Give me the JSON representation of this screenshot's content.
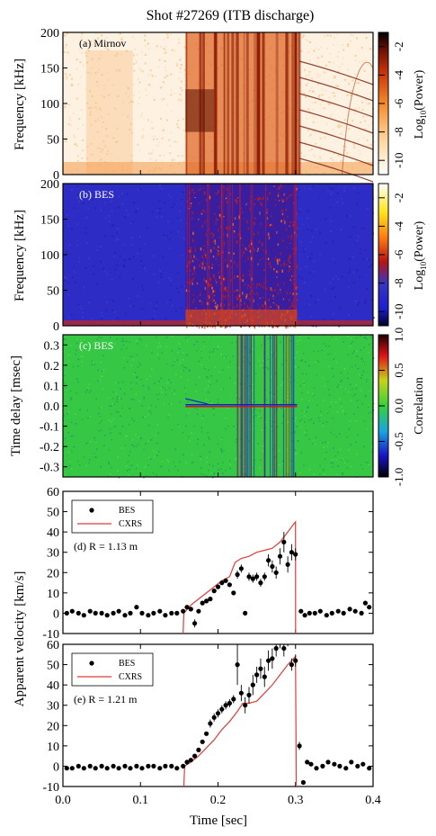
{
  "title": "Shot #27269 (ITB discharge)",
  "xaxis": {
    "label": "Time [sec]",
    "min": 0.0,
    "max": 0.4,
    "ticks": [
      "0.0",
      "0.1",
      "0.2",
      "0.3",
      "0.4"
    ]
  },
  "chart_data": [
    {
      "type": "heatmap",
      "panel_label": "(a) Mirnov",
      "ylabel": "Frequency [kHz]",
      "xlim": [
        0.0,
        0.4
      ],
      "ylim": [
        0,
        200
      ],
      "yticks": [
        "0",
        "50",
        "100",
        "150",
        "200"
      ],
      "colorbar": {
        "label_base": "Log",
        "label_sub": "10",
        "label_tail": "(Power)",
        "ticks": [
          "-10",
          "-8",
          "-6",
          "-4",
          "-2"
        ],
        "range": [
          -11,
          -1
        ],
        "colormap": "white-orange-red-black"
      },
      "features": {
        "broadband_window": [
          0.158,
          0.305
        ],
        "modes_after": 0.305
      }
    },
    {
      "type": "heatmap",
      "panel_label": "(b) BES",
      "ylabel": "Frequency [kHz]",
      "xlim": [
        0.0,
        0.4
      ],
      "ylim": [
        0,
        200
      ],
      "yticks": [
        "0",
        "50",
        "100",
        "150",
        "200"
      ],
      "colorbar": {
        "label_base": "Log",
        "label_sub": "10",
        "label_tail": "(Power)",
        "ticks": [
          "-10",
          "-8",
          "-6",
          "-4",
          "-2"
        ],
        "range": [
          -11,
          -1
        ],
        "colormap": "blue-red-yellow-white"
      },
      "features": {
        "activity_window": [
          0.158,
          0.302
        ]
      }
    },
    {
      "type": "heatmap",
      "panel_label": "(c) BES",
      "ylabel": "Time delay [msec]",
      "xlim": [
        0.0,
        0.4
      ],
      "ylim": [
        -0.35,
        0.35
      ],
      "yticks": [
        "0.3",
        "0.2",
        "0.1",
        "0.0",
        "-0.1",
        "-0.2",
        "-0.3"
      ],
      "colorbar": {
        "label": "Correlation",
        "ticks": [
          "1.0",
          "0.5",
          "0.0",
          "-0.5",
          "-1.0"
        ],
        "range": [
          -1,
          1
        ],
        "colormap": "black-blue-green-red-black"
      },
      "features": {
        "activity_window": [
          0.158,
          0.302
        ]
      }
    },
    {
      "type": "line",
      "panel_label": "(d) R = 1.13 m",
      "ylabel": "Apparent velocity [km/s]",
      "xlim": [
        0.0,
        0.4
      ],
      "ylim": [
        -10,
        60
      ],
      "yticks": [
        "-10",
        "0",
        "10",
        "20",
        "30",
        "40",
        "50",
        "60"
      ],
      "legend": {
        "position": "top-left",
        "entries": [
          "BES",
          "CXRS"
        ]
      },
      "series": [
        {
          "name": "BES",
          "style": "points",
          "x": [
            0.005,
            0.012,
            0.02,
            0.027,
            0.035,
            0.042,
            0.05,
            0.057,
            0.065,
            0.072,
            0.08,
            0.087,
            0.095,
            0.102,
            0.11,
            0.117,
            0.125,
            0.132,
            0.14,
            0.147,
            0.155,
            0.16,
            0.165,
            0.17,
            0.175,
            0.18,
            0.185,
            0.19,
            0.195,
            0.2,
            0.205,
            0.21,
            0.215,
            0.22,
            0.225,
            0.23,
            0.235,
            0.24,
            0.245,
            0.25,
            0.255,
            0.26,
            0.265,
            0.27,
            0.275,
            0.28,
            0.285,
            0.29,
            0.295,
            0.3,
            0.307,
            0.312,
            0.318,
            0.325,
            0.332,
            0.34,
            0.347,
            0.355,
            0.362,
            0.37,
            0.377,
            0.385,
            0.39,
            0.395
          ],
          "y": [
            0,
            1,
            0,
            -1,
            1,
            0,
            0,
            -1,
            0,
            1,
            -1,
            0,
            3,
            0,
            -1,
            0,
            1,
            -1,
            0,
            0,
            1,
            3,
            2,
            -5,
            1,
            5,
            6,
            7,
            11,
            13,
            15,
            16,
            14,
            10,
            19,
            22,
            0,
            18,
            17,
            18,
            15,
            18,
            26,
            23,
            20,
            28,
            35,
            24,
            30,
            29,
            1,
            -1,
            0,
            0,
            1,
            -1,
            0,
            1,
            0,
            2,
            1,
            0,
            5,
            3
          ],
          "err": [
            0,
            0,
            0,
            0,
            0,
            0,
            0,
            0,
            0,
            0,
            0,
            0,
            0,
            0,
            0,
            0,
            0,
            0,
            0,
            0,
            0,
            1,
            1,
            2,
            1,
            1,
            1,
            1,
            1,
            1,
            1,
            1,
            1,
            1,
            2,
            2,
            1,
            2,
            2,
            2,
            2,
            2,
            3,
            3,
            3,
            4,
            5,
            4,
            4,
            3,
            1,
            1,
            1,
            1,
            1,
            1,
            1,
            1,
            1,
            1,
            1,
            1,
            1,
            1
          ]
        },
        {
          "name": "CXRS",
          "style": "line",
          "color": "#e23b3b",
          "x": [
            0.155,
            0.156,
            0.165,
            0.175,
            0.185,
            0.195,
            0.205,
            0.215,
            0.222,
            0.23,
            0.24,
            0.25,
            0.26,
            0.27,
            0.28,
            0.29,
            0.3,
            0.3001
          ],
          "y": [
            -10,
            0,
            4,
            7,
            10,
            13,
            16,
            18,
            25,
            27,
            28,
            30,
            31,
            32,
            35,
            40,
            45,
            -10
          ]
        }
      ]
    },
    {
      "type": "line",
      "panel_label": "(e) R = 1.21 m",
      "ylabel": "Apparent velocity [km/s]",
      "xlim": [
        0.0,
        0.4
      ],
      "ylim": [
        -10,
        60
      ],
      "yticks": [
        "-10",
        "0",
        "10",
        "20",
        "30",
        "40",
        "50",
        "60"
      ],
      "legend": {
        "position": "top-left",
        "entries": [
          "BES",
          "CXRS"
        ]
      },
      "series": [
        {
          "name": "BES",
          "style": "points",
          "x": [
            0.005,
            0.012,
            0.02,
            0.027,
            0.035,
            0.042,
            0.05,
            0.057,
            0.065,
            0.072,
            0.08,
            0.087,
            0.095,
            0.102,
            0.11,
            0.117,
            0.125,
            0.132,
            0.14,
            0.147,
            0.155,
            0.16,
            0.165,
            0.17,
            0.175,
            0.18,
            0.185,
            0.19,
            0.195,
            0.2,
            0.205,
            0.21,
            0.215,
            0.22,
            0.225,
            0.23,
            0.235,
            0.24,
            0.245,
            0.25,
            0.255,
            0.26,
            0.265,
            0.27,
            0.275,
            0.28,
            0.285,
            0.29,
            0.295,
            0.3,
            0.305,
            0.31,
            0.315,
            0.32,
            0.327,
            0.335,
            0.342,
            0.35,
            0.357,
            0.365,
            0.372,
            0.38,
            0.387,
            0.395
          ],
          "y": [
            -1,
            -1,
            0,
            -1,
            0,
            -1,
            0,
            -1,
            0,
            -1,
            0,
            -1,
            0,
            -1,
            0,
            0,
            -1,
            0,
            0,
            -1,
            0,
            2,
            3,
            5,
            8,
            12,
            16,
            21,
            24,
            26,
            28,
            30,
            31,
            33,
            50,
            36,
            30,
            35,
            40,
            45,
            48,
            44,
            52,
            53,
            58,
            61,
            58,
            62,
            50,
            52,
            10,
            -8,
            2,
            1,
            -1,
            0,
            2,
            1,
            0,
            -1,
            2,
            0,
            1,
            -1
          ],
          "err": [
            0,
            0,
            0,
            0,
            0,
            0,
            0,
            0,
            0,
            0,
            0,
            0,
            0,
            0,
            0,
            0,
            0,
            0,
            0,
            0,
            0,
            1,
            1,
            1,
            1,
            1,
            1,
            2,
            2,
            2,
            2,
            2,
            2,
            2,
            10,
            4,
            4,
            4,
            5,
            4,
            5,
            5,
            5,
            5,
            4,
            3,
            4,
            3,
            3,
            3,
            2,
            1,
            1,
            1,
            1,
            1,
            1,
            1,
            1,
            1,
            1,
            1,
            1,
            1
          ]
        },
        {
          "name": "CXRS",
          "style": "line",
          "color": "#e23b3b",
          "x": [
            0.156,
            0.157,
            0.165,
            0.175,
            0.185,
            0.195,
            0.205,
            0.215,
            0.225,
            0.232,
            0.24,
            0.25,
            0.26,
            0.27,
            0.28,
            0.29,
            0.3,
            0.301
          ],
          "y": [
            -10,
            0,
            2,
            5,
            9,
            13,
            18,
            22,
            27,
            31,
            31,
            32,
            36,
            40,
            45,
            50,
            54,
            -10
          ]
        }
      ]
    }
  ]
}
